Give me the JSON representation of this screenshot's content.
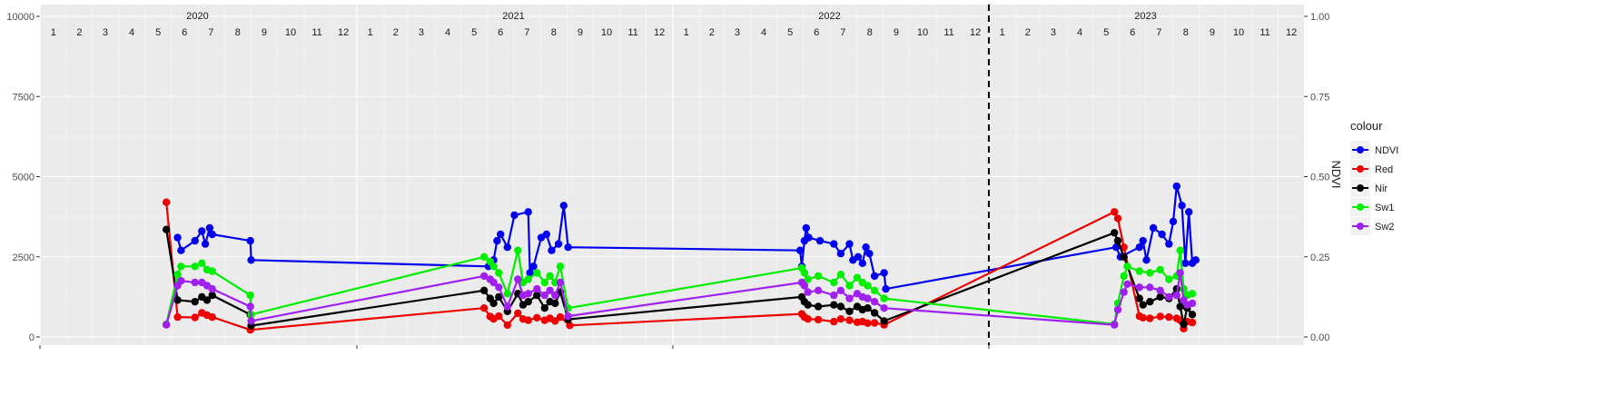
{
  "chart_data": {
    "type": "line",
    "x_unit": "date",
    "xlim": [
      "2020-01-01",
      "2023-12-31"
    ],
    "ylim_left": [
      0,
      10000
    ],
    "ylim_right": [
      0,
      1.0
    ],
    "y_ticks_left": [
      "0",
      "2500",
      "5000",
      "7500",
      "10000"
    ],
    "y_ticks_right": [
      "0.00",
      "0.25",
      "0.50",
      "0.75",
      "1.00"
    ],
    "ylabel_right": "NDVI",
    "year_labels": [
      "2020",
      "2021",
      "2022",
      "2023"
    ],
    "month_labels": [
      "1",
      "2",
      "3",
      "4",
      "5",
      "6",
      "7",
      "8",
      "9",
      "10",
      "11",
      "12"
    ],
    "vline_date": "2023-01-01",
    "grid": true,
    "legend": {
      "title": "colour",
      "position": "right",
      "entries": [
        "NDVI",
        "Red",
        "Nir",
        "Sw1",
        "Sw2"
      ]
    },
    "series": [
      {
        "name": "NDVI",
        "color": "#0000ee",
        "axis": "right",
        "points": [
          [
            "2020-06-08",
            0.31
          ],
          [
            "2020-06-12",
            0.27
          ],
          [
            "2020-06-28",
            0.3
          ],
          [
            "2020-07-06",
            0.33
          ],
          [
            "2020-07-10",
            0.29
          ],
          [
            "2020-07-15",
            0.34
          ],
          [
            "2020-07-18",
            0.32
          ],
          [
            "2020-08-31",
            0.3
          ],
          [
            "2020-09-01",
            0.24
          ],
          [
            "2021-06-02",
            0.22
          ],
          [
            "2021-06-08",
            0.24
          ],
          [
            "2021-06-12",
            0.3
          ],
          [
            "2021-06-16",
            0.32
          ],
          [
            "2021-06-24",
            0.28
          ],
          [
            "2021-07-02",
            0.38
          ],
          [
            "2021-07-18",
            0.39
          ],
          [
            "2021-07-20",
            0.2
          ],
          [
            "2021-07-24",
            0.22
          ],
          [
            "2021-08-02",
            0.31
          ],
          [
            "2021-08-08",
            0.32
          ],
          [
            "2021-08-14",
            0.27
          ],
          [
            "2021-08-22",
            0.29
          ],
          [
            "2021-08-28",
            0.41
          ],
          [
            "2021-09-02",
            0.28
          ],
          [
            "2022-05-28",
            0.27
          ],
          [
            "2022-05-30",
            0.22
          ],
          [
            "2022-06-02",
            0.3
          ],
          [
            "2022-06-04",
            0.34
          ],
          [
            "2022-06-07",
            0.31
          ],
          [
            "2022-06-20",
            0.3
          ],
          [
            "2022-07-06",
            0.29
          ],
          [
            "2022-07-14",
            0.26
          ],
          [
            "2022-07-24",
            0.29
          ],
          [
            "2022-07-28",
            0.24
          ],
          [
            "2022-08-03",
            0.25
          ],
          [
            "2022-08-08",
            0.23
          ],
          [
            "2022-08-12",
            0.28
          ],
          [
            "2022-08-16",
            0.26
          ],
          [
            "2022-08-22",
            0.19
          ],
          [
            "2022-09-02",
            0.2
          ],
          [
            "2022-09-04",
            0.15
          ],
          [
            "2023-05-28",
            0.28
          ],
          [
            "2023-06-02",
            0.25
          ],
          [
            "2023-06-24",
            0.28
          ],
          [
            "2023-06-28",
            0.3
          ],
          [
            "2023-07-02",
            0.24
          ],
          [
            "2023-07-10",
            0.34
          ],
          [
            "2023-07-20",
            0.32
          ],
          [
            "2023-07-28",
            0.29
          ],
          [
            "2023-08-02",
            0.36
          ],
          [
            "2023-08-06",
            0.47
          ],
          [
            "2023-08-12",
            0.41
          ],
          [
            "2023-08-16",
            0.23
          ],
          [
            "2023-08-20",
            0.39
          ],
          [
            "2023-08-24",
            0.23
          ],
          [
            "2023-08-28",
            0.24
          ]
        ]
      },
      {
        "name": "Red",
        "color": "#ee0000",
        "axis": "left",
        "points": [
          [
            "2020-05-26",
            4200
          ],
          [
            "2020-06-08",
            620
          ],
          [
            "2020-06-28",
            610
          ],
          [
            "2020-07-06",
            750
          ],
          [
            "2020-07-12",
            680
          ],
          [
            "2020-07-18",
            620
          ],
          [
            "2020-08-31",
            220
          ],
          [
            "2021-05-28",
            900
          ],
          [
            "2021-06-04",
            640
          ],
          [
            "2021-06-08",
            560
          ],
          [
            "2021-06-14",
            650
          ],
          [
            "2021-06-24",
            370
          ],
          [
            "2021-07-06",
            740
          ],
          [
            "2021-07-12",
            560
          ],
          [
            "2021-07-18",
            520
          ],
          [
            "2021-07-28",
            600
          ],
          [
            "2021-08-06",
            520
          ],
          [
            "2021-08-12",
            580
          ],
          [
            "2021-08-18",
            500
          ],
          [
            "2021-08-24",
            620
          ],
          [
            "2021-09-04",
            360
          ],
          [
            "2022-05-30",
            720
          ],
          [
            "2022-06-02",
            620
          ],
          [
            "2022-06-06",
            560
          ],
          [
            "2022-06-18",
            540
          ],
          [
            "2022-07-06",
            480
          ],
          [
            "2022-07-14",
            560
          ],
          [
            "2022-07-24",
            520
          ],
          [
            "2022-08-02",
            460
          ],
          [
            "2022-08-08",
            480
          ],
          [
            "2022-08-14",
            430
          ],
          [
            "2022-08-22",
            440
          ],
          [
            "2022-09-02",
            380
          ],
          [
            "2023-05-26",
            3900
          ],
          [
            "2023-05-30",
            3700
          ],
          [
            "2023-06-06",
            2800
          ],
          [
            "2023-06-24",
            650
          ],
          [
            "2023-06-28",
            600
          ],
          [
            "2023-07-06",
            580
          ],
          [
            "2023-07-18",
            640
          ],
          [
            "2023-07-28",
            620
          ],
          [
            "2023-08-06",
            580
          ],
          [
            "2023-08-10",
            520
          ],
          [
            "2023-08-14",
            260
          ],
          [
            "2023-08-18",
            480
          ],
          [
            "2023-08-24",
            450
          ]
        ]
      },
      {
        "name": "Nir",
        "color": "#000000",
        "axis": "left",
        "points": [
          [
            "2020-05-26",
            3350
          ],
          [
            "2020-06-08",
            1150
          ],
          [
            "2020-06-28",
            1100
          ],
          [
            "2020-07-06",
            1250
          ],
          [
            "2020-07-12",
            1150
          ],
          [
            "2020-07-18",
            1300
          ],
          [
            "2020-08-31",
            700
          ],
          [
            "2020-09-01",
            350
          ],
          [
            "2021-05-28",
            1450
          ],
          [
            "2021-06-04",
            1200
          ],
          [
            "2021-06-08",
            1050
          ],
          [
            "2021-06-14",
            1250
          ],
          [
            "2021-06-24",
            800
          ],
          [
            "2021-07-06",
            1350
          ],
          [
            "2021-07-12",
            1000
          ],
          [
            "2021-07-18",
            1100
          ],
          [
            "2021-07-28",
            1300
          ],
          [
            "2021-08-06",
            900
          ],
          [
            "2021-08-12",
            1100
          ],
          [
            "2021-08-18",
            1050
          ],
          [
            "2021-08-24",
            1400
          ],
          [
            "2021-09-02",
            550
          ],
          [
            "2022-05-30",
            1250
          ],
          [
            "2022-06-02",
            1100
          ],
          [
            "2022-06-06",
            1000
          ],
          [
            "2022-06-18",
            950
          ],
          [
            "2022-07-06",
            1000
          ],
          [
            "2022-07-14",
            950
          ],
          [
            "2022-07-24",
            800
          ],
          [
            "2022-08-02",
            950
          ],
          [
            "2022-08-08",
            850
          ],
          [
            "2022-08-14",
            900
          ],
          [
            "2022-08-22",
            750
          ],
          [
            "2022-09-02",
            500
          ],
          [
            "2023-05-26",
            3250
          ],
          [
            "2023-05-30",
            3000
          ],
          [
            "2023-06-06",
            2500
          ],
          [
            "2023-06-24",
            1200
          ],
          [
            "2023-06-28",
            1000
          ],
          [
            "2023-07-06",
            1100
          ],
          [
            "2023-07-18",
            1250
          ],
          [
            "2023-07-28",
            1200
          ],
          [
            "2023-08-06",
            1500
          ],
          [
            "2023-08-10",
            950
          ],
          [
            "2023-08-14",
            400
          ],
          [
            "2023-08-18",
            900
          ],
          [
            "2023-08-24",
            700
          ]
        ]
      },
      {
        "name": "Sw1",
        "color": "#00ee00",
        "axis": "left",
        "points": [
          [
            "2020-05-26",
            400
          ],
          [
            "2020-06-08",
            1950
          ],
          [
            "2020-06-12",
            2200
          ],
          [
            "2020-06-28",
            2200
          ],
          [
            "2020-07-06",
            2300
          ],
          [
            "2020-07-12",
            2100
          ],
          [
            "2020-07-18",
            2050
          ],
          [
            "2020-08-31",
            1300
          ],
          [
            "2020-09-01",
            700
          ],
          [
            "2021-05-28",
            2500
          ],
          [
            "2021-06-04",
            2350
          ],
          [
            "2021-06-08",
            2200
          ],
          [
            "2021-06-14",
            2000
          ],
          [
            "2021-06-24",
            1350
          ],
          [
            "2021-07-06",
            2700
          ],
          [
            "2021-07-12",
            1700
          ],
          [
            "2021-07-18",
            1800
          ],
          [
            "2021-07-28",
            2000
          ],
          [
            "2021-08-06",
            1700
          ],
          [
            "2021-08-12",
            1900
          ],
          [
            "2021-08-18",
            1700
          ],
          [
            "2021-08-24",
            2200
          ],
          [
            "2021-09-02",
            900
          ],
          [
            "2022-05-30",
            2150
          ],
          [
            "2022-06-02",
            2000
          ],
          [
            "2022-06-06",
            1800
          ],
          [
            "2022-06-18",
            1900
          ],
          [
            "2022-07-06",
            1700
          ],
          [
            "2022-07-14",
            1950
          ],
          [
            "2022-07-24",
            1600
          ],
          [
            "2022-08-02",
            1850
          ],
          [
            "2022-08-08",
            1700
          ],
          [
            "2022-08-14",
            1600
          ],
          [
            "2022-08-22",
            1450
          ],
          [
            "2022-09-02",
            1200
          ],
          [
            "2023-05-26",
            400
          ],
          [
            "2023-05-30",
            1050
          ],
          [
            "2023-06-06",
            1900
          ],
          [
            "2023-06-10",
            2200
          ],
          [
            "2023-06-24",
            2050
          ],
          [
            "2023-07-06",
            2000
          ],
          [
            "2023-07-18",
            2100
          ],
          [
            "2023-07-28",
            1800
          ],
          [
            "2023-08-06",
            1900
          ],
          [
            "2023-08-10",
            2700
          ],
          [
            "2023-08-14",
            1500
          ],
          [
            "2023-08-18",
            1300
          ],
          [
            "2023-08-24",
            1350
          ]
        ]
      },
      {
        "name": "Sw2",
        "color": "#a020f0",
        "axis": "left",
        "points": [
          [
            "2020-05-26",
            380
          ],
          [
            "2020-06-08",
            1600
          ],
          [
            "2020-06-12",
            1750
          ],
          [
            "2020-06-28",
            1700
          ],
          [
            "2020-07-06",
            1700
          ],
          [
            "2020-07-12",
            1600
          ],
          [
            "2020-07-18",
            1500
          ],
          [
            "2020-08-31",
            950
          ],
          [
            "2020-09-01",
            500
          ],
          [
            "2021-05-28",
            1900
          ],
          [
            "2021-06-04",
            1800
          ],
          [
            "2021-06-08",
            1700
          ],
          [
            "2021-06-14",
            1550
          ],
          [
            "2021-06-24",
            950
          ],
          [
            "2021-07-06",
            1800
          ],
          [
            "2021-07-12",
            1300
          ],
          [
            "2021-07-18",
            1350
          ],
          [
            "2021-07-28",
            1500
          ],
          [
            "2021-08-06",
            1300
          ],
          [
            "2021-08-12",
            1450
          ],
          [
            "2021-08-18",
            1300
          ],
          [
            "2021-08-24",
            1700
          ],
          [
            "2021-09-02",
            650
          ],
          [
            "2022-05-30",
            1700
          ],
          [
            "2022-06-02",
            1600
          ],
          [
            "2022-06-06",
            1400
          ],
          [
            "2022-06-18",
            1450
          ],
          [
            "2022-07-06",
            1300
          ],
          [
            "2022-07-14",
            1450
          ],
          [
            "2022-07-24",
            1200
          ],
          [
            "2022-08-02",
            1350
          ],
          [
            "2022-08-08",
            1250
          ],
          [
            "2022-08-14",
            1200
          ],
          [
            "2022-08-22",
            1100
          ],
          [
            "2022-09-02",
            900
          ],
          [
            "2023-05-26",
            380
          ],
          [
            "2023-05-30",
            850
          ],
          [
            "2023-06-06",
            1400
          ],
          [
            "2023-06-10",
            1650
          ],
          [
            "2023-06-24",
            1550
          ],
          [
            "2023-07-06",
            1550
          ],
          [
            "2023-07-18",
            1450
          ],
          [
            "2023-07-28",
            1250
          ],
          [
            "2023-08-06",
            1300
          ],
          [
            "2023-08-10",
            2000
          ],
          [
            "2023-08-14",
            1150
          ],
          [
            "2023-08-18",
            1000
          ],
          [
            "2023-08-24",
            1050
          ]
        ]
      }
    ]
  }
}
